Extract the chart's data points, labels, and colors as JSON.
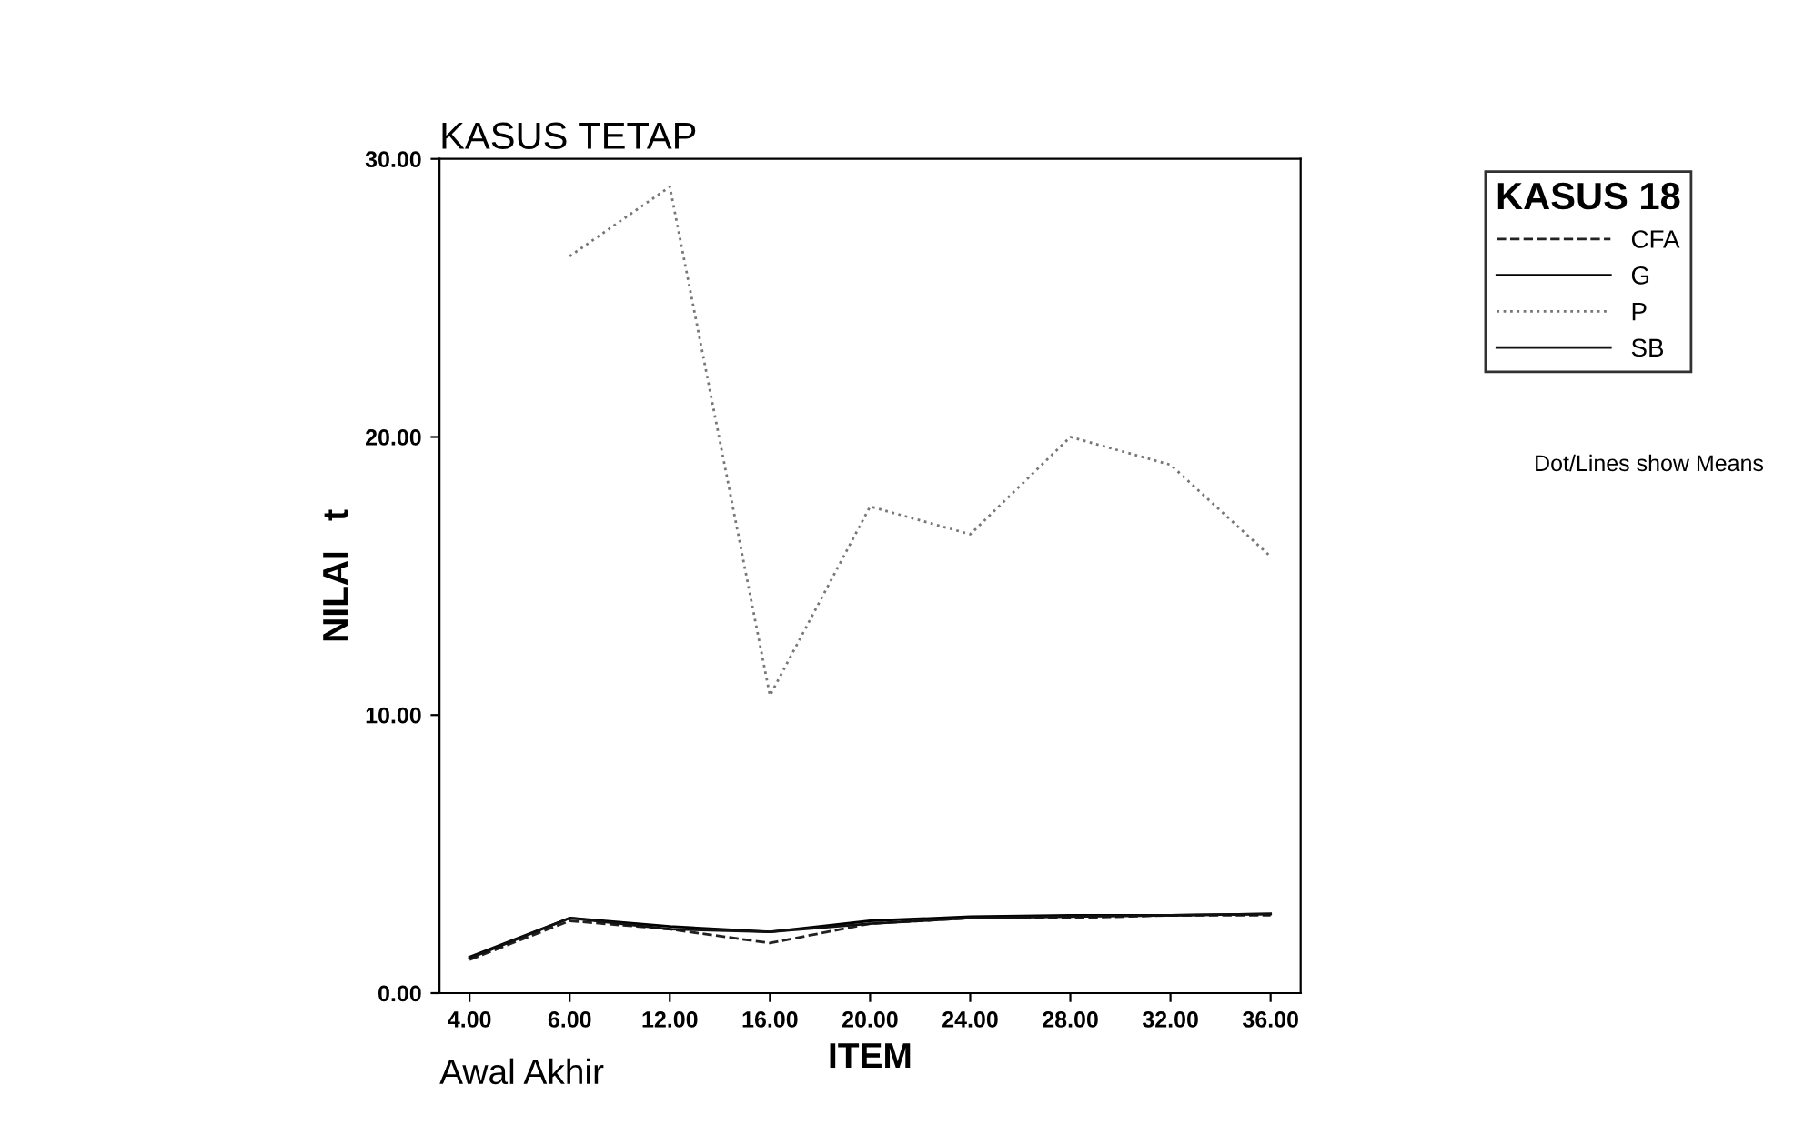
{
  "chart_data": {
    "type": "line",
    "title": "KASUS TETAP",
    "xlabel": "ITEM",
    "ylabel": "NILAI   t",
    "legend_title": "KASUS 18",
    "categories": [
      "4.00",
      "6.00",
      "12.00",
      "16.00",
      "20.00",
      "24.00",
      "28.00",
      "32.00",
      "36.00"
    ],
    "series": [
      {
        "name": "CFA",
        "color": "#222222",
        "line_style": "dashed",
        "values": [
          1.2,
          2.6,
          2.3,
          1.8,
          2.5,
          2.7,
          2.7,
          2.8,
          2.8
        ]
      },
      {
        "name": "G",
        "color": "#000000",
        "line_style": "solid",
        "values": [
          1.3,
          2.7,
          2.4,
          2.2,
          2.6,
          2.75,
          2.8,
          2.8,
          2.85
        ]
      },
      {
        "name": "P",
        "color": "#777777",
        "line_style": "dotted",
        "values": [
          null,
          26.5,
          29.0,
          10.7,
          17.5,
          16.5,
          20.0,
          19.0,
          15.7
        ]
      },
      {
        "name": "SB",
        "color": "#111111",
        "line_style": "solid",
        "values": [
          1.25,
          2.7,
          2.3,
          2.2,
          2.5,
          2.7,
          2.75,
          2.8,
          2.85
        ]
      }
    ],
    "ylim": [
      0,
      30
    ],
    "yticks": [
      {
        "value": 0,
        "label": "0.00"
      },
      {
        "value": 10,
        "label": "10.00"
      },
      {
        "value": 20,
        "label": "20.00"
      },
      {
        "value": 30,
        "label": "30.00"
      }
    ],
    "grid": false,
    "legend": "top right",
    "marker": "none",
    "annotations": [
      "Dot/Lines show Means",
      "Awal Akhir"
    ]
  }
}
